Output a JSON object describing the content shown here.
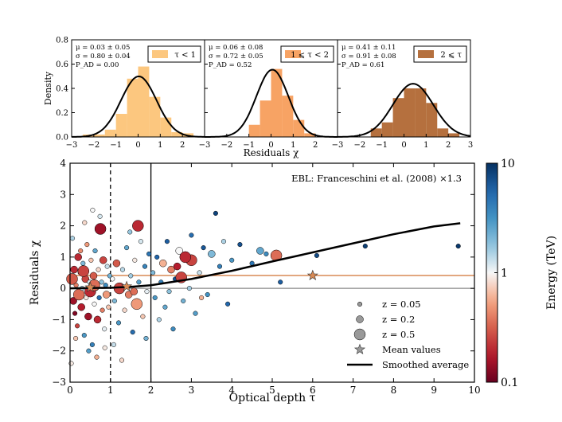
{
  "chart_data": [
    {
      "type": "bar",
      "panel": "histogram-1",
      "legend": "τ < 1",
      "stats": [
        "μ = 0.03 ± 0.05",
        "σ = 0.80 ± 0.04",
        "P_AD = 0.00"
      ],
      "bins": [
        [
          -2.5,
          -2.0,
          0.02
        ],
        [
          -2.0,
          -1.5,
          0.02
        ],
        [
          -1.5,
          -1.0,
          0.06
        ],
        [
          -1.0,
          -0.5,
          0.19
        ],
        [
          -0.5,
          0.0,
          0.48
        ],
        [
          0.0,
          0.5,
          0.58
        ],
        [
          0.5,
          1.0,
          0.33
        ],
        [
          1.0,
          1.5,
          0.16
        ],
        [
          1.5,
          2.0,
          0.04
        ],
        [
          2.0,
          2.5,
          0.03
        ]
      ],
      "fit_curve": {
        "mu": 0.03,
        "sigma": 0.8
      },
      "color": "#fcc77f",
      "xlim": [
        -3,
        3
      ],
      "ylim": [
        0,
        0.8
      ],
      "xticks": [
        "−3",
        "−2",
        "−1",
        "0",
        "1",
        "2"
      ],
      "yticks": [
        "0.0",
        "0.2",
        "0.4",
        "0.6",
        "0.8"
      ],
      "ylabel": "Density"
    },
    {
      "type": "bar",
      "panel": "histogram-2",
      "legend": "1 ⩽ τ < 2",
      "stats": [
        "μ = 0.06 ± 0.08",
        "σ = 0.72 ± 0.05",
        "P_AD = 0.52"
      ],
      "bins": [
        [
          -1.0,
          -0.5,
          0.1
        ],
        [
          -0.5,
          0.0,
          0.3
        ],
        [
          0.0,
          0.5,
          0.56
        ],
        [
          0.5,
          1.0,
          0.34
        ],
        [
          1.0,
          1.5,
          0.14
        ],
        [
          1.5,
          2.0,
          0.03
        ]
      ],
      "fit_curve": {
        "mu": 0.06,
        "sigma": 0.72
      },
      "color": "#f7a364",
      "xlim": [
        -3,
        3
      ],
      "ylim": [
        0,
        0.8
      ],
      "xticks": [
        "−3",
        "−2",
        "−1",
        "0",
        "1",
        "2"
      ],
      "xlabel": "Residuals χ"
    },
    {
      "type": "bar",
      "panel": "histogram-3",
      "legend": "2 ⩽ τ",
      "stats": [
        "μ = 0.41 ± 0.11",
        "σ = 0.91 ± 0.08",
        "P_AD = 0.61"
      ],
      "bins": [
        [
          -1.5,
          -1.0,
          0.07
        ],
        [
          -1.0,
          -0.5,
          0.12
        ],
        [
          -0.5,
          0.0,
          0.32
        ],
        [
          0.0,
          0.5,
          0.4
        ],
        [
          0.5,
          1.0,
          0.4
        ],
        [
          1.0,
          1.5,
          0.28
        ],
        [
          1.5,
          2.0,
          0.07
        ],
        [
          2.0,
          2.5,
          0.03
        ]
      ],
      "fit_curve": {
        "mu": 0.41,
        "sigma": 0.91
      },
      "color": "#b5703e",
      "xlim": [
        -3,
        3
      ],
      "ylim": [
        0,
        0.8
      ],
      "xticks": [
        "−3",
        "−2",
        "−1",
        "0",
        "1",
        "2",
        "3"
      ]
    },
    {
      "type": "scatter",
      "panel": "main-scatter",
      "annotation": "EBL: Franceschini et al. (2008)   ×1.3",
      "xlabel": "Optical depth τ",
      "ylabel": "Residuals χ",
      "xlim": [
        0,
        10
      ],
      "ylim": [
        -3,
        4
      ],
      "xticks": [
        "0",
        "1",
        "2",
        "3",
        "4",
        "5",
        "6",
        "7",
        "8",
        "9",
        "10"
      ],
      "yticks": [
        "−3",
        "−2",
        "−1",
        "0",
        "1",
        "2",
        "3",
        "4"
      ],
      "vlines": [
        {
          "x": 1,
          "style": "dashed"
        },
        {
          "x": 2,
          "style": "solid"
        }
      ],
      "hline_mean": {
        "y": 0.41,
        "color": "#d98a55"
      },
      "hline_zero": {
        "y": 0,
        "color": "#888888"
      },
      "mean_values": [
        [
          0.5,
          0.03
        ],
        [
          1.4,
          0.06
        ],
        [
          6.0,
          0.41
        ]
      ],
      "smoothed_average": [
        [
          0,
          0
        ],
        [
          1,
          0.02
        ],
        [
          1.5,
          0.05
        ],
        [
          2,
          0.1
        ],
        [
          3,
          0.3
        ],
        [
          4,
          0.56
        ],
        [
          5,
          0.86
        ],
        [
          6,
          1.15
        ],
        [
          7,
          1.44
        ],
        [
          8,
          1.73
        ],
        [
          9,
          1.98
        ],
        [
          9.65,
          2.08
        ]
      ],
      "points": [
        [
          0.05,
          0.3,
          0.5,
          0.3
        ],
        [
          0.08,
          -0.4,
          0.2,
          0.15
        ],
        [
          0.1,
          0.6,
          0.2,
          0.2
        ],
        [
          0.12,
          -0.8,
          0.05,
          0.12
        ],
        [
          0.15,
          0.1,
          0.05,
          0.4
        ],
        [
          0.18,
          -1.2,
          0.05,
          0.25
        ],
        [
          0.2,
          1.0,
          0.2,
          0.2
        ],
        [
          0.22,
          -0.2,
          0.5,
          0.35
        ],
        [
          0.25,
          0.5,
          0.05,
          0.6
        ],
        [
          0.28,
          -0.6,
          0.2,
          0.18
        ],
        [
          0.3,
          0.0,
          0.05,
          1.5
        ],
        [
          0.32,
          0.8,
          0.05,
          2.0
        ],
        [
          0.35,
          -1.5,
          0.05,
          3.0
        ],
        [
          0.38,
          0.3,
          0.2,
          0.25
        ],
        [
          0.4,
          -0.3,
          0.05,
          0.9
        ],
        [
          0.42,
          1.4,
          0.05,
          0.5
        ],
        [
          0.45,
          -0.9,
          0.2,
          0.15
        ],
        [
          0.48,
          0.2,
          0.05,
          1.2
        ],
        [
          0.5,
          -0.1,
          0.5,
          0.2
        ],
        [
          0.52,
          0.9,
          0.05,
          0.7
        ],
        [
          0.55,
          -1.8,
          0.05,
          4.0
        ],
        [
          0.58,
          0.4,
          0.2,
          0.3
        ],
        [
          0.6,
          -0.5,
          0.05,
          1.0
        ],
        [
          0.62,
          1.2,
          0.05,
          2.5
        ],
        [
          0.65,
          0.0,
          0.05,
          0.6
        ],
        [
          0.68,
          -1.0,
          0.2,
          0.2
        ],
        [
          0.7,
          0.6,
          0.05,
          0.8
        ],
        [
          0.72,
          -0.3,
          0.05,
          5.0
        ],
        [
          0.75,
          1.9,
          0.5,
          0.15
        ],
        [
          0.78,
          0.2,
          0.05,
          1.8
        ],
        [
          0.8,
          -0.7,
          0.05,
          0.4
        ],
        [
          0.82,
          0.9,
          0.2,
          0.25
        ],
        [
          0.85,
          -1.3,
          0.05,
          1.1
        ],
        [
          0.88,
          0.1,
          0.05,
          3.5
        ],
        [
          0.9,
          -0.2,
          0.2,
          0.5
        ],
        [
          0.92,
          0.7,
          0.05,
          1.3
        ],
        [
          0.95,
          -0.6,
          0.05,
          0.7
        ],
        [
          0.98,
          0.4,
          0.05,
          2.2
        ],
        [
          0.03,
          -2.4,
          0.05,
          0.9
        ],
        [
          0.06,
          1.6,
          0.05,
          1.5
        ],
        [
          0.14,
          -1.6,
          0.05,
          0.7
        ],
        [
          0.26,
          1.2,
          0.05,
          0.45
        ],
        [
          0.36,
          2.1,
          0.05,
          0.8
        ],
        [
          0.46,
          -2.0,
          0.05,
          2.8
        ],
        [
          0.56,
          2.5,
          0.05,
          1.0
        ],
        [
          0.66,
          -2.2,
          0.05,
          0.6
        ],
        [
          0.74,
          2.3,
          0.05,
          1.2
        ],
        [
          0.86,
          -1.9,
          0.05,
          0.9
        ],
        [
          0.33,
          0.55,
          0.5,
          0.25
        ],
        [
          0.6,
          0.1,
          0.5,
          0.35
        ],
        [
          1.05,
          0.3,
          0.05,
          1.0
        ],
        [
          1.1,
          -0.4,
          0.05,
          2.0
        ],
        [
          1.15,
          0.8,
          0.2,
          0.3
        ],
        [
          1.2,
          -1.1,
          0.05,
          3.0
        ],
        [
          1.25,
          0.1,
          0.05,
          0.6
        ],
        [
          1.3,
          0.6,
          0.05,
          1.4
        ],
        [
          1.35,
          -0.7,
          0.05,
          0.8
        ],
        [
          1.4,
          1.3,
          0.05,
          2.5
        ],
        [
          1.45,
          -0.2,
          0.2,
          0.4
        ],
        [
          1.5,
          0.4,
          0.05,
          1.6
        ],
        [
          1.55,
          -1.4,
          0.05,
          5.0
        ],
        [
          1.6,
          0.9,
          0.05,
          0.9
        ],
        [
          1.65,
          -0.5,
          0.5,
          0.5
        ],
        [
          1.7,
          0.2,
          0.05,
          2.8
        ],
        [
          1.75,
          1.5,
          0.05,
          1.2
        ],
        [
          1.8,
          -0.9,
          0.05,
          0.7
        ],
        [
          1.85,
          0.7,
          0.05,
          3.8
        ],
        [
          1.9,
          -0.1,
          0.05,
          1.1
        ],
        [
          1.95,
          1.1,
          0.05,
          4.5
        ],
        [
          1.08,
          -1.8,
          0.05,
          1.3
        ],
        [
          1.28,
          -2.3,
          0.05,
          0.8
        ],
        [
          1.48,
          1.8,
          0.05,
          1.7
        ],
        [
          1.68,
          2.0,
          0.5,
          0.2
        ],
        [
          1.88,
          -1.6,
          0.05,
          2.2
        ],
        [
          1.22,
          0.0,
          0.5,
          0.25
        ],
        [
          1.58,
          -0.1,
          0.2,
          0.35
        ],
        [
          2.05,
          0.5,
          0.05,
          2.0
        ],
        [
          2.1,
          -0.3,
          0.05,
          3.0
        ],
        [
          2.15,
          1.0,
          0.05,
          5.5
        ],
        [
          2.2,
          -1.0,
          0.05,
          1.5
        ],
        [
          2.25,
          0.2,
          0.05,
          4.0
        ],
        [
          2.3,
          0.8,
          0.2,
          0.6
        ],
        [
          2.35,
          -0.6,
          0.05,
          2.5
        ],
        [
          2.4,
          1.5,
          0.05,
          6.0
        ],
        [
          2.45,
          -0.1,
          0.05,
          1.8
        ],
        [
          2.5,
          0.6,
          0.2,
          0.4
        ],
        [
          2.55,
          -1.3,
          0.05,
          3.5
        ],
        [
          2.6,
          0.3,
          0.05,
          7.0
        ],
        [
          2.7,
          1.2,
          0.2,
          1.0
        ],
        [
          2.75,
          0.35,
          0.5,
          0.25
        ],
        [
          2.8,
          -0.4,
          0.05,
          2.2
        ],
        [
          2.9,
          0.9,
          0.05,
          4.5
        ],
        [
          2.95,
          0.0,
          0.05,
          1.6
        ],
        [
          3.0,
          1.7,
          0.05,
          5.0
        ],
        [
          3.1,
          -0.8,
          0.05,
          2.8
        ],
        [
          3.2,
          0.5,
          0.05,
          1.3
        ],
        [
          3.3,
          1.3,
          0.05,
          6.5
        ],
        [
          3.4,
          -0.2,
          0.05,
          3.2
        ],
        [
          3.5,
          1.1,
          0.2,
          2.0
        ],
        [
          3.6,
          2.4,
          0.05,
          8.0
        ],
        [
          3.7,
          0.7,
          0.05,
          4.0
        ],
        [
          3.8,
          1.5,
          0.05,
          1.5
        ],
        [
          3.9,
          -0.5,
          0.05,
          5.5
        ],
        [
          4.0,
          0.9,
          0.05,
          3.0
        ],
        [
          4.2,
          1.4,
          0.05,
          7.0
        ],
        [
          4.5,
          0.8,
          0.05,
          4.5
        ],
        [
          4.7,
          1.2,
          0.2,
          2.5
        ],
        [
          4.85,
          1.1,
          0.05,
          3.5
        ],
        [
          5.1,
          1.05,
          0.5,
          0.35
        ],
        [
          5.2,
          0.2,
          0.05,
          6.0
        ],
        [
          3.0,
          0.9,
          0.5,
          0.25
        ],
        [
          2.85,
          1.0,
          0.5,
          0.2
        ],
        [
          2.65,
          0.7,
          0.2,
          0.18
        ],
        [
          3.25,
          -0.3,
          0.05,
          0.6
        ],
        [
          6.1,
          1.05,
          0.05,
          7.5
        ],
        [
          7.3,
          1.35,
          0.05,
          8.5
        ],
        [
          9.6,
          1.35,
          0.05,
          9.0
        ]
      ]
    }
  ],
  "colorbar": {
    "label": "Energy (TeV)",
    "ticks": [
      "10",
      "1",
      "0.1"
    ],
    "scale": "log"
  },
  "legend": {
    "items": [
      {
        "label": "z = 0.05",
        "kind": "marker-small"
      },
      {
        "label": "z = 0.2",
        "kind": "marker-medium"
      },
      {
        "label": "z = 0.5",
        "kind": "marker-large"
      },
      {
        "label": "Mean values",
        "kind": "star"
      },
      {
        "label": "Smoothed average",
        "kind": "line"
      }
    ]
  }
}
